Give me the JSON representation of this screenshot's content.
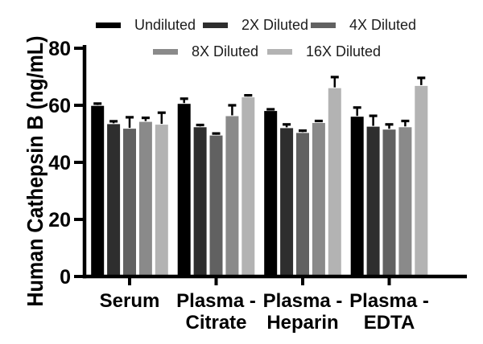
{
  "chart_data": {
    "type": "bar",
    "title": "",
    "ylabel": "Human Cathepsin B (ng/mL)",
    "xlabel": "",
    "ylim": [
      0,
      80
    ],
    "yticks": [
      0,
      20,
      40,
      60,
      80
    ],
    "grid": false,
    "legend_position": "top",
    "axis_color": "#000000",
    "background_color": "#ffffff",
    "error_bar_color": "#000000",
    "categories": [
      [
        "Serum"
      ],
      [
        "Plasma -",
        "Citrate"
      ],
      [
        "Plasma -",
        "Heparin"
      ],
      [
        "Plasma -",
        "EDTA"
      ]
    ],
    "series": [
      {
        "name": "Undiluted",
        "color": "#000000",
        "values": [
          59.8,
          60.5,
          58.0,
          56.0
        ],
        "errors": [
          0.8,
          1.8,
          0.6,
          3.2
        ]
      },
      {
        "name": "2X Diluted",
        "color": "#2e2e2e",
        "values": [
          53.4,
          52.3,
          52.0,
          52.5
        ],
        "errors": [
          1.0,
          0.8,
          1.3,
          3.8
        ]
      },
      {
        "name": "4X Diluted",
        "color": "#616161",
        "values": [
          51.8,
          49.4,
          50.3,
          51.5
        ],
        "errors": [
          4.0,
          0.7,
          0.8,
          1.8
        ]
      },
      {
        "name": "8X Diluted",
        "color": "#8a8a8a",
        "values": [
          54.2,
          56.2,
          53.8,
          52.3
        ],
        "errors": [
          1.4,
          3.8,
          0.7,
          2.2
        ]
      },
      {
        "name": "16X Diluted",
        "color": "#b3b3b3",
        "values": [
          53.2,
          62.8,
          66.0,
          66.8
        ],
        "errors": [
          4.2,
          0.7,
          3.9,
          2.8
        ]
      }
    ]
  }
}
